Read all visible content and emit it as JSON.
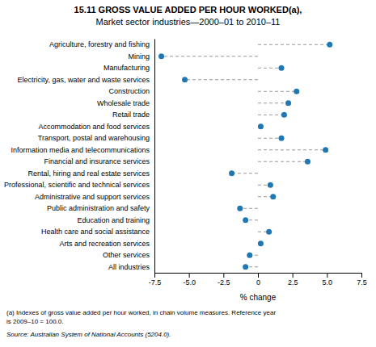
{
  "chart_data": {
    "type": "dot",
    "orientation": "horizontal",
    "title": "15.11  GROSS VALUE ADDED PER HOUR WORKED(a),",
    "subtitle": "Market sector industries—2000–01 to 2010–11",
    "categories": [
      "Agriculture, forestry and fishing",
      "Mining",
      "Manufacturing",
      "Electricity, gas, water and waste services",
      "Construction",
      "Wholesale trade",
      "Retail trade",
      "Accommodation and food services",
      "Transport, postal and warehousing",
      "Information media and telecommunications",
      "Financial and insurance services",
      "Rental, hiring and real estate services",
      "Professional, scientific and technical services",
      "Administrative and support services",
      "Public administration and safety",
      "Education and training",
      "Health care and social assistance",
      "Arts and recreation services",
      "Other services",
      "All industries"
    ],
    "values": [
      5.2,
      -7.0,
      1.7,
      -5.3,
      2.8,
      2.2,
      1.9,
      0.2,
      1.7,
      4.9,
      3.6,
      -1.9,
      0.9,
      1.1,
      -1.3,
      -0.9,
      0.8,
      0.2,
      -0.6,
      -0.9
    ],
    "xlabel": "% change",
    "xlim": [
      -7.5,
      7.5
    ],
    "xticks": [
      -7.5,
      {
        "value": -5.0,
        "label": "-5.0"
      },
      -2.5,
      0,
      2.5,
      {
        "value": 5.0,
        "label": "5.0"
      },
      7.5
    ],
    "grid": false,
    "marker": "circle",
    "line_style": "dashed",
    "annotations": [
      "(a) Indexes of gross value added per hour worked, in chain volume measures. Reference year",
      "is 2009–10 = 100.0.",
      "Source: Australian System of National Accounts (5204.0)."
    ]
  }
}
